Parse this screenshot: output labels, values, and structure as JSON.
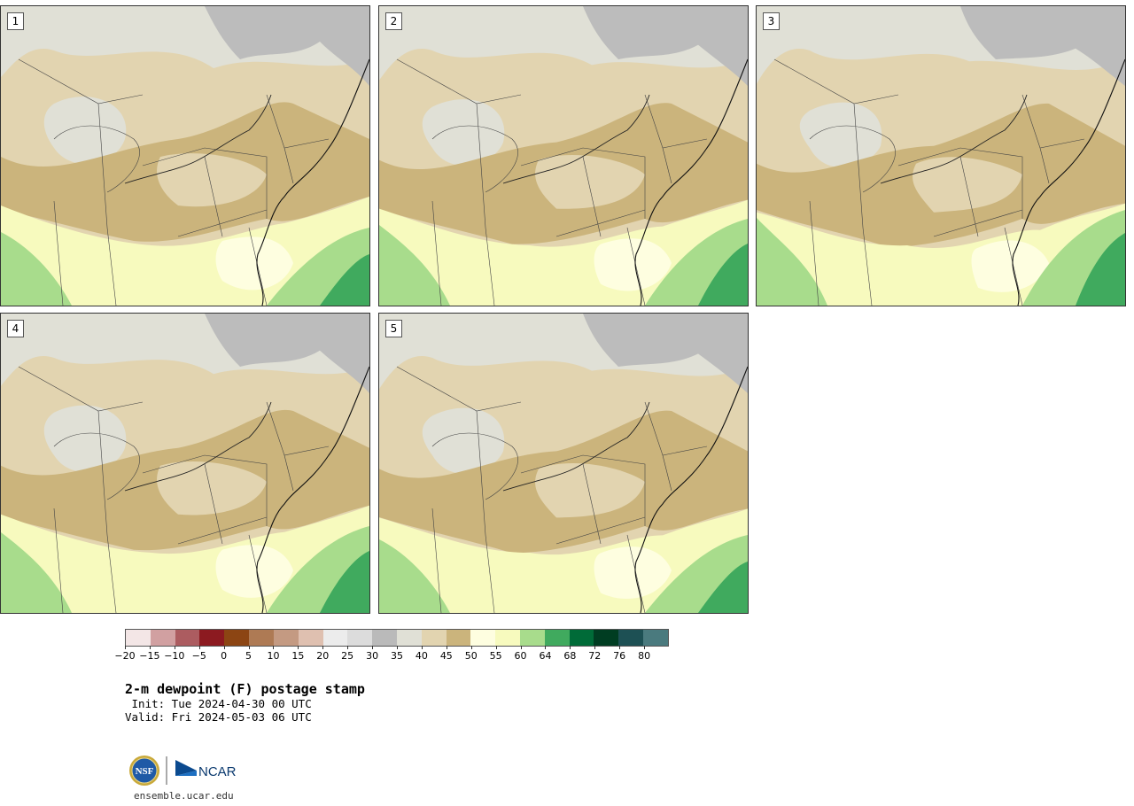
{
  "panels": [
    {
      "member": "1"
    },
    {
      "member": "2"
    },
    {
      "member": "3"
    },
    {
      "member": "4"
    },
    {
      "member": "5"
    }
  ],
  "colorbar": {
    "colors": [
      "#f3e6e6",
      "#d1a0a1",
      "#ac5c60",
      "#8c1a20",
      "#8c4513",
      "#ae7a54",
      "#c49a82",
      "#dfc0b0",
      "#ececec",
      "#dcdcdc",
      "#bababa",
      "#e0e0d6",
      "#e2d4b0",
      "#cbb47c",
      "#fefee0",
      "#f7fabe",
      "#a8dc8c",
      "#40aa5e",
      "#006b38",
      "#003d22",
      "#1d5054",
      "#4a7a7e"
    ],
    "tick_labels": [
      "−20",
      "−15",
      "−10",
      "−5",
      "0",
      "5",
      "10",
      "15",
      "20",
      "25",
      "30",
      "35",
      "40",
      "45",
      "50",
      "55",
      "60",
      "64",
      "68",
      "72",
      "76",
      "80"
    ]
  },
  "title": "2-m dewpoint (F) postage stamp",
  "init": " Init: Tue 2024-04-30 00 UTC",
  "valid": "Valid: Fri 2024-05-03 06 UTC",
  "logos": {
    "nsf": "NSF",
    "ncar": "NCAR"
  },
  "site": "ensemble.ucar.edu"
}
